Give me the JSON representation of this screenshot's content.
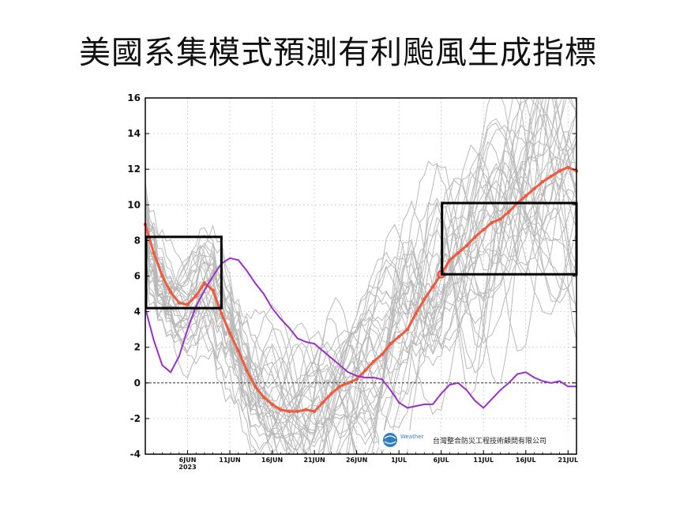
{
  "page": {
    "title": "美國系集模式預測有利颱風生成指標"
  },
  "chart_data": {
    "type": "line",
    "title": "美國系集模式預測有利颱風生成指標",
    "xlabel": "",
    "ylabel": "",
    "x_range": [
      "2023-06-01",
      "2023-07-22"
    ],
    "ylim": [
      -4,
      16
    ],
    "yticks": [
      -4,
      -2,
      0,
      2,
      4,
      6,
      8,
      10,
      12,
      14,
      16
    ],
    "xticks": [
      {
        "date": "2023-06-06",
        "label": "6JUN",
        "sublabel": "2023"
      },
      {
        "date": "2023-06-11",
        "label": "11JUN",
        "sublabel": ""
      },
      {
        "date": "2023-06-16",
        "label": "16JUN",
        "sublabel": ""
      },
      {
        "date": "2023-06-21",
        "label": "21JUN",
        "sublabel": ""
      },
      {
        "date": "2023-06-26",
        "label": "26JUN",
        "sublabel": ""
      },
      {
        "date": "2023-07-01",
        "label": "1JUL",
        "sublabel": ""
      },
      {
        "date": "2023-07-06",
        "label": "6JUL",
        "sublabel": ""
      },
      {
        "date": "2023-07-11",
        "label": "11JUL",
        "sublabel": ""
      },
      {
        "date": "2023-07-16",
        "label": "16JUL",
        "sublabel": ""
      },
      {
        "date": "2023-07-21",
        "label": "21JUL",
        "sublabel": ""
      }
    ],
    "zero_line": true,
    "series": [
      {
        "name": "",
        "color": "#f05a3c",
        "x": [
          "2023-06-01",
          "2023-06-02",
          "2023-06-03",
          "2023-06-04",
          "2023-06-05",
          "2023-06-06",
          "2023-06-07",
          "2023-06-08",
          "2023-06-09",
          "2023-06-10",
          "2023-06-11",
          "2023-06-12",
          "2023-06-13",
          "2023-06-14",
          "2023-06-15",
          "2023-06-16",
          "2023-06-17",
          "2023-06-18",
          "2023-06-19",
          "2023-06-20",
          "2023-06-21",
          "2023-06-22",
          "2023-06-23",
          "2023-06-24",
          "2023-06-25",
          "2023-06-26",
          "2023-06-27",
          "2023-06-28",
          "2023-06-29",
          "2023-06-30",
          "2023-07-01",
          "2023-07-02",
          "2023-07-03",
          "2023-07-04",
          "2023-07-05",
          "2023-07-06",
          "2023-07-07",
          "2023-07-08",
          "2023-07-09",
          "2023-07-10",
          "2023-07-11",
          "2023-07-12",
          "2023-07-13",
          "2023-07-14",
          "2023-07-15",
          "2023-07-16",
          "2023-07-17",
          "2023-07-18",
          "2023-07-19",
          "2023-07-20",
          "2023-07-21",
          "2023-07-22"
        ],
        "values": [
          8.9,
          7.3,
          6.0,
          5.1,
          4.5,
          4.4,
          4.9,
          5.6,
          5.2,
          3.9,
          2.8,
          1.8,
          0.7,
          -0.2,
          -0.8,
          -1.2,
          -1.5,
          -1.6,
          -1.6,
          -1.5,
          -1.6,
          -1.1,
          -0.6,
          -0.2,
          0.0,
          0.2,
          0.7,
          1.2,
          1.6,
          2.2,
          2.6,
          3.0,
          3.9,
          4.7,
          5.4,
          6.1,
          6.9,
          7.3,
          7.7,
          8.2,
          8.6,
          9.0,
          9.2,
          9.6,
          10.1,
          10.5,
          10.9,
          11.3,
          11.6,
          11.9,
          12.1,
          11.9
        ]
      },
      {
        "name": "",
        "color": "#9b2fc9",
        "x": [
          "2023-06-01",
          "2023-06-02",
          "2023-06-03",
          "2023-06-04",
          "2023-06-05",
          "2023-06-06",
          "2023-06-07",
          "2023-06-08",
          "2023-06-09",
          "2023-06-10",
          "2023-06-11",
          "2023-06-12",
          "2023-06-13",
          "2023-06-14",
          "2023-06-15",
          "2023-06-16",
          "2023-06-17",
          "2023-06-18",
          "2023-06-19",
          "2023-06-20",
          "2023-06-21",
          "2023-06-22",
          "2023-06-23",
          "2023-06-24",
          "2023-06-25",
          "2023-06-26",
          "2023-06-27",
          "2023-06-28",
          "2023-06-29",
          "2023-06-30",
          "2023-07-01",
          "2023-07-02",
          "2023-07-03",
          "2023-07-04",
          "2023-07-05",
          "2023-07-06",
          "2023-07-07",
          "2023-07-08",
          "2023-07-09",
          "2023-07-10",
          "2023-07-11",
          "2023-07-12",
          "2023-07-13",
          "2023-07-14",
          "2023-07-15",
          "2023-07-16",
          "2023-07-17",
          "2023-07-18",
          "2023-07-19",
          "2023-07-20",
          "2023-07-21",
          "2023-07-22"
        ],
        "values": [
          4.2,
          2.4,
          1.0,
          0.6,
          1.5,
          3.0,
          4.3,
          5.2,
          6.0,
          6.7,
          7.0,
          6.9,
          6.3,
          5.6,
          5.0,
          4.2,
          3.6,
          3.1,
          2.5,
          2.3,
          2.2,
          1.8,
          1.4,
          1.0,
          0.6,
          0.4,
          0.3,
          0.3,
          0.2,
          -0.4,
          -1.1,
          -1.4,
          -1.3,
          -1.2,
          -1.2,
          -0.6,
          -0.1,
          0.0,
          -0.4,
          -1.0,
          -1.4,
          -0.9,
          -0.4,
          0.0,
          0.5,
          0.6,
          0.3,
          0.1,
          0.0,
          0.1,
          -0.2,
          -0.2
        ]
      }
    ],
    "boxes": [
      {
        "x0": "2023-06-01",
        "x1": "2023-06-10",
        "y0": 4.2,
        "y1": 8.2
      },
      {
        "x0": "2023-07-06",
        "x1": "2023-07-22",
        "y0": 6.1,
        "y1": 10.1
      }
    ],
    "highlight_point": {
      "x": "2023-07-06",
      "y": 6.1
    },
    "ensemble_members_color": "#b9b9b9"
  },
  "logo": {
    "brand_text": "Weather",
    "company": "台灣整合防災工程技術顧問有限公司"
  }
}
